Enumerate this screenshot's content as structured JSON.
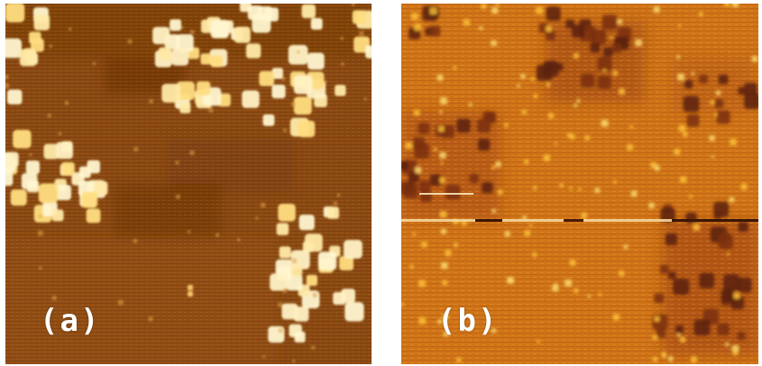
{
  "panels": [
    {
      "label": "(a)"
    },
    {
      "label": "(b)"
    }
  ],
  "colors": {
    "panel_a_base": "#8c4a12",
    "panel_a_bright": "#fff1c4",
    "panel_b_base": "#d07418",
    "panel_b_dark": "#5a2108",
    "panel_b_bright": "#ffd040"
  }
}
